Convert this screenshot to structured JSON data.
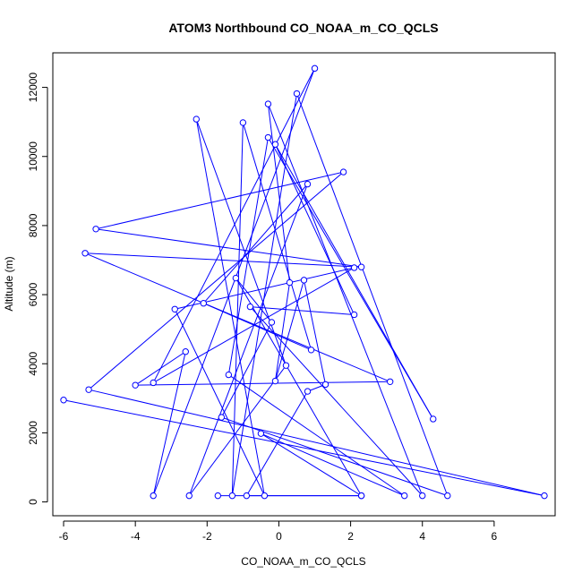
{
  "chart_data": {
    "type": "line",
    "title": "ATOM3 Northbound CO_NOAA_m_CO_QCLS",
    "xlabel": "CO_NOAA_m_CO_QCLS",
    "ylabel": "Altitude (m)",
    "xlim": [
      -6.3,
      7.7
    ],
    "ylim": [
      -400,
      13000
    ],
    "xticks": [
      -6,
      -4,
      -2,
      0,
      2,
      4,
      6
    ],
    "yticks": [
      0,
      2000,
      4000,
      6000,
      8000,
      10000,
      12000
    ],
    "grid": false,
    "series_color": "#0000ff",
    "series": [
      {
        "marker": "open-circle",
        "points": [
          [
            -6.0,
            2950
          ],
          [
            7.4,
            180
          ],
          [
            -5.3,
            3250
          ],
          [
            1.8,
            9550
          ],
          [
            -5.1,
            7900
          ],
          [
            2.3,
            6800
          ],
          [
            -5.4,
            7200
          ],
          [
            3.1,
            3480
          ],
          [
            -4.0,
            3380
          ],
          [
            -2.6,
            4350
          ],
          [
            -3.5,
            180
          ],
          [
            1.0,
            12550
          ],
          [
            -3.5,
            3450
          ],
          [
            2.1,
            6780
          ],
          [
            -2.9,
            5580
          ],
          [
            -0.4,
            180
          ],
          [
            -2.3,
            11080
          ],
          [
            0.2,
            3950
          ],
          [
            -2.5,
            180
          ],
          [
            0.8,
            9200
          ],
          [
            -2.1,
            5750
          ],
          [
            0.9,
            4400
          ],
          [
            -1.0,
            10980
          ],
          [
            -1.3,
            180
          ],
          [
            0.5,
            11820
          ],
          [
            4.7,
            180
          ],
          [
            -1.6,
            2450
          ],
          [
            -0.2,
            5200
          ],
          [
            -1.2,
            6480
          ],
          [
            2.3,
            180
          ],
          [
            -0.5,
            1980
          ],
          [
            3.5,
            180
          ],
          [
            -1.4,
            3680
          ],
          [
            -0.3,
            10550
          ],
          [
            4.3,
            2400
          ],
          [
            -0.1,
            10350
          ],
          [
            2.1,
            5420
          ],
          [
            -0.8,
            5650
          ],
          [
            4.0,
            180
          ],
          [
            -0.3,
            11520
          ],
          [
            0.3,
            6350
          ],
          [
            -0.1,
            3500
          ],
          [
            0.7,
            6420
          ],
          [
            1.3,
            3400
          ],
          [
            0.8,
            3200
          ],
          [
            -0.9,
            180
          ],
          [
            2.3,
            180
          ],
          [
            -1.7,
            180
          ]
        ]
      }
    ]
  }
}
